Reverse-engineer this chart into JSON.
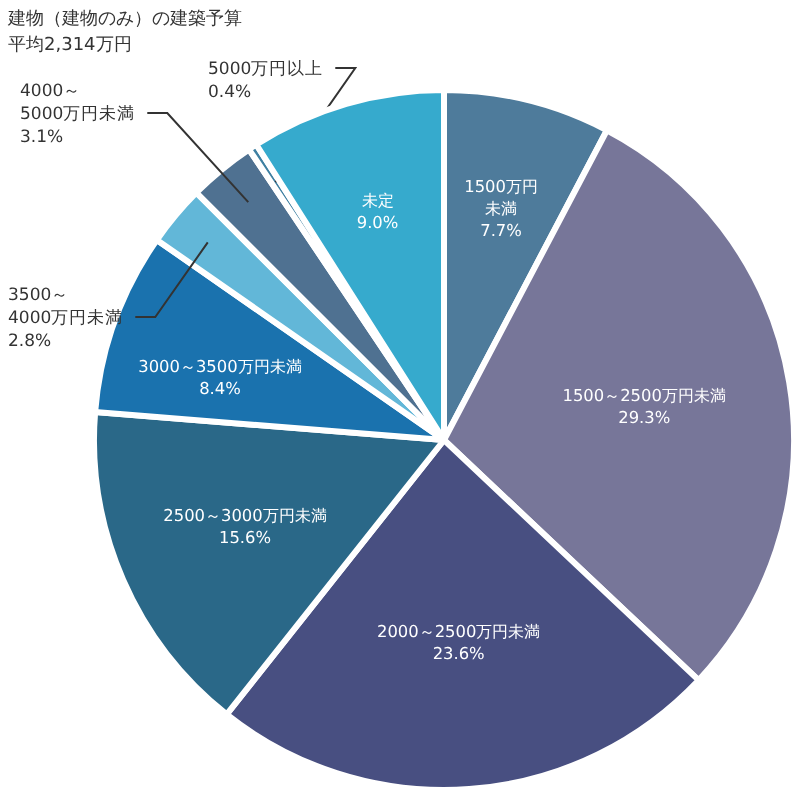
{
  "chart_data": {
    "type": "pie",
    "title": "建物（建物のみ）の建築予算",
    "subtitle": "平均2,314万円",
    "categories": [
      "1500万円未満",
      "1500～2500万円未満",
      "2000～2500万円未満",
      "2500～3000万円未満",
      "3000～3500万円未満",
      "3500～4000万円未満",
      "4000～5000万円未満",
      "5000万円以上",
      "未定"
    ],
    "values": [
      7.7,
      29.3,
      23.6,
      15.6,
      8.4,
      2.8,
      3.1,
      0.4,
      9.0
    ],
    "value_labels": [
      "7.7%",
      "29.3%",
      "23.6%",
      "15.6%",
      "8.4%",
      "2.8%",
      "3.1%",
      "0.4%",
      "9.0%"
    ],
    "colors": [
      "#4e7b9b",
      "#777699",
      "#484f81",
      "#2a6888",
      "#1a72ae",
      "#62b7d8",
      "#4f7191",
      "#3f80a2",
      "#36aacd"
    ]
  }
}
